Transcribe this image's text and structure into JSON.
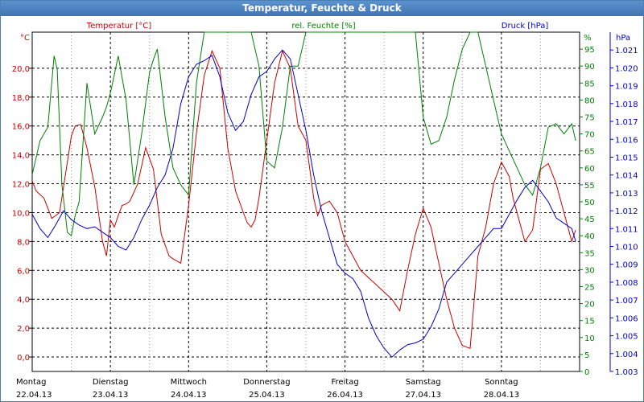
{
  "window": {
    "title": "Temperatur, Feuchte & Druck"
  },
  "chart_data": {
    "type": "line",
    "title": "Temperatur, Feuchte & Druck",
    "grid": true,
    "x_days": [
      {
        "day": "Montag",
        "date": "22.04.13"
      },
      {
        "day": "Dienstag",
        "date": "23.04.13"
      },
      {
        "day": "Mittwoch",
        "date": "24.04.13"
      },
      {
        "day": "Donnerstag",
        "date": "25.04.13"
      },
      {
        "day": "Freitag",
        "date": "26.04.13"
      },
      {
        "day": "Samstag",
        "date": "27.04.13"
      },
      {
        "day": "Sonntag",
        "date": "28.04.13"
      }
    ],
    "x_range": [
      0,
      7
    ],
    "axes": {
      "temperature": {
        "label": "Temperatur [°C]",
        "unit": "°C",
        "color": "#cc0000",
        "range": [
          -1,
          22.5
        ],
        "ticks": [
          "0,0",
          "2,0",
          "4,0",
          "6,0",
          "8,0",
          "10,0",
          "12,0",
          "14,0",
          "16,0",
          "18,0",
          "20,0"
        ],
        "tick_values": [
          0,
          2,
          4,
          6,
          8,
          10,
          12,
          14,
          16,
          18,
          20
        ]
      },
      "humidity": {
        "label": "rel. Feuchte [%]",
        "unit": "%",
        "color": "#008000",
        "range": [
          0,
          100
        ],
        "ticks": [
          "0",
          "5",
          "10",
          "15",
          "20",
          "25",
          "30",
          "35",
          "40",
          "45",
          "50",
          "55",
          "60",
          "65",
          "70",
          "75",
          "80",
          "85",
          "90",
          "95"
        ],
        "tick_values": [
          0,
          5,
          10,
          15,
          20,
          25,
          30,
          35,
          40,
          45,
          50,
          55,
          60,
          65,
          70,
          75,
          80,
          85,
          90,
          95
        ]
      },
      "pressure": {
        "label": "Druck [hPa]",
        "unit": "hPa",
        "color": "#0000cc",
        "range": [
          1003,
          1022
        ],
        "ticks": [
          "1.003",
          "1.004",
          "1.005",
          "1.006",
          "1.007",
          "1.008",
          "1.009",
          "1.010",
          "1.011",
          "1.012",
          "1.013",
          "1.014",
          "1.015",
          "1.016",
          "1.017",
          "1.018",
          "1.019",
          "1.020",
          "1.021"
        ],
        "tick_values": [
          1003,
          1004,
          1005,
          1006,
          1007,
          1008,
          1009,
          1010,
          1011,
          1012,
          1013,
          1014,
          1015,
          1016,
          1017,
          1018,
          1019,
          1020,
          1021
        ]
      }
    },
    "series": [
      {
        "name": "Temperatur [°C]",
        "axis": "temperature",
        "color": "#cc0000",
        "x": [
          0,
          0.05,
          0.15,
          0.25,
          0.35,
          0.45,
          0.5,
          0.55,
          0.62,
          0.7,
          0.8,
          0.9,
          0.95,
          1.0,
          1.05,
          1.1,
          1.15,
          1.2,
          1.25,
          1.35,
          1.45,
          1.55,
          1.65,
          1.75,
          1.8,
          1.9,
          2.0,
          2.1,
          2.2,
          2.3,
          2.4,
          2.5,
          2.6,
          2.7,
          2.75,
          2.8,
          2.85,
          2.9,
          3.0,
          3.1,
          3.2,
          3.3,
          3.4,
          3.5,
          3.6,
          3.65,
          3.7,
          3.8,
          3.9,
          4.0,
          4.1,
          4.2,
          4.3,
          4.4,
          4.5,
          4.6,
          4.7,
          4.8,
          4.9,
          5.0,
          5.1,
          5.2,
          5.3,
          5.4,
          5.5,
          5.6,
          5.7,
          5.8,
          5.9,
          6.0,
          6.1,
          6.15,
          6.2,
          6.3,
          6.4,
          6.5,
          6.6,
          6.7,
          6.8,
          6.9,
          6.95
        ],
        "values": [
          12.2,
          11.5,
          11.0,
          9.6,
          10.0,
          13.5,
          15.3,
          16.0,
          16.1,
          14.5,
          11.8,
          8.0,
          7.0,
          9.5,
          9.0,
          9.8,
          10.5,
          10.6,
          10.8,
          12.0,
          14.5,
          13.0,
          8.5,
          7.0,
          6.8,
          6.5,
          10.5,
          15.5,
          19.5,
          21.2,
          20.0,
          14.5,
          11.5,
          10.0,
          9.3,
          9.0,
          9.5,
          11.0,
          15.0,
          19.0,
          21.2,
          20.0,
          16.0,
          15.0,
          11.0,
          9.8,
          10.5,
          10.8,
          10.0,
          8.0,
          7.0,
          6.0,
          5.5,
          5.0,
          4.5,
          4.0,
          3.2,
          6.0,
          8.5,
          10.3,
          9.0,
          6.5,
          4.0,
          2.0,
          0.8,
          0.6,
          7.0,
          9.0,
          12.0,
          13.5,
          12.5,
          11.0,
          10.0,
          8.0,
          8.8,
          13.0,
          13.4,
          12.0,
          10.0,
          8.0,
          8.8
        ]
      },
      {
        "name": "rel. Feuchte [%]",
        "axis": "humidity",
        "color": "#008000",
        "x": [
          0,
          0.1,
          0.2,
          0.28,
          0.32,
          0.38,
          0.45,
          0.5,
          0.55,
          0.6,
          0.7,
          0.8,
          0.9,
          0.95,
          1.0,
          1.1,
          1.2,
          1.3,
          1.4,
          1.5,
          1.55,
          1.6,
          1.7,
          1.8,
          1.9,
          2.0,
          2.1,
          2.2,
          2.3,
          2.4,
          2.5,
          2.6,
          2.7,
          2.8,
          2.9,
          3.0,
          3.1,
          3.2,
          3.3,
          3.4,
          3.5,
          3.6,
          3.7,
          3.8,
          3.9,
          4.0,
          4.05,
          4.1,
          4.2,
          4.3,
          4.4,
          4.5,
          4.6,
          4.7,
          4.8,
          4.9,
          5.0,
          5.1,
          5.2,
          5.3,
          5.4,
          5.5,
          5.6,
          5.65,
          5.7,
          5.8,
          5.9,
          6.0,
          6.1,
          6.2,
          6.3,
          6.4,
          6.5,
          6.6,
          6.7,
          6.8,
          6.9,
          6.95
        ],
        "values": [
          58,
          68,
          72,
          93,
          89,
          55,
          41,
          40,
          46,
          50,
          85,
          70,
          75,
          78,
          82,
          93,
          80,
          55,
          70,
          88,
          92,
          95,
          75,
          60,
          55,
          52,
          85,
          100,
          100,
          100,
          100,
          100,
          100,
          100,
          90,
          62,
          60,
          72,
          90,
          90,
          100,
          100,
          100,
          100,
          100,
          100,
          100,
          100,
          100,
          100,
          100,
          100,
          100,
          100,
          100,
          100,
          75,
          67,
          68,
          75,
          86,
          95,
          100,
          100,
          100,
          90,
          80,
          70,
          65,
          60,
          55,
          52,
          60,
          72,
          73,
          70,
          73,
          68
        ]
      },
      {
        "name": "Druck [hPa]",
        "axis": "pressure",
        "color": "#0000cc",
        "x": [
          0,
          0.1,
          0.2,
          0.3,
          0.4,
          0.5,
          0.6,
          0.7,
          0.8,
          0.9,
          1.0,
          1.1,
          1.2,
          1.3,
          1.4,
          1.5,
          1.6,
          1.7,
          1.8,
          1.9,
          2.0,
          2.1,
          2.2,
          2.3,
          2.4,
          2.5,
          2.6,
          2.7,
          2.8,
          2.9,
          3.0,
          3.1,
          3.2,
          3.3,
          3.4,
          3.5,
          3.6,
          3.7,
          3.8,
          3.9,
          4.0,
          4.1,
          4.2,
          4.3,
          4.4,
          4.5,
          4.6,
          4.7,
          4.8,
          4.9,
          5.0,
          5.1,
          5.2,
          5.3,
          5.4,
          5.5,
          5.6,
          5.7,
          5.8,
          5.9,
          6.0,
          6.1,
          6.2,
          6.3,
          6.4,
          6.5,
          6.6,
          6.7,
          6.8,
          6.9,
          6.95
        ],
        "values": [
          1011.8,
          1011.0,
          1010.5,
          1011.2,
          1012.0,
          1011.5,
          1011.2,
          1011.0,
          1011.1,
          1010.8,
          1010.5,
          1010.0,
          1009.8,
          1010.5,
          1011.5,
          1012.3,
          1013.3,
          1014.0,
          1015.5,
          1018.0,
          1019.5,
          1020.2,
          1020.4,
          1020.7,
          1019.5,
          1017.5,
          1016.5,
          1017.0,
          1018.5,
          1019.5,
          1019.8,
          1020.5,
          1021.0,
          1020.5,
          1018.5,
          1016.5,
          1014.0,
          1012.0,
          1010.5,
          1009.0,
          1008.5,
          1008.2,
          1007.5,
          1006.0,
          1005.0,
          1004.3,
          1003.8,
          1004.2,
          1004.5,
          1004.6,
          1004.8,
          1005.5,
          1006.5,
          1008.0,
          1008.5,
          1009.0,
          1009.5,
          1010.0,
          1010.5,
          1011.0,
          1011.0,
          1011.8,
          1012.6,
          1013.3,
          1013.7,
          1013.1,
          1012.5,
          1011.6,
          1011.3,
          1011.0,
          1010.3
        ]
      }
    ]
  }
}
